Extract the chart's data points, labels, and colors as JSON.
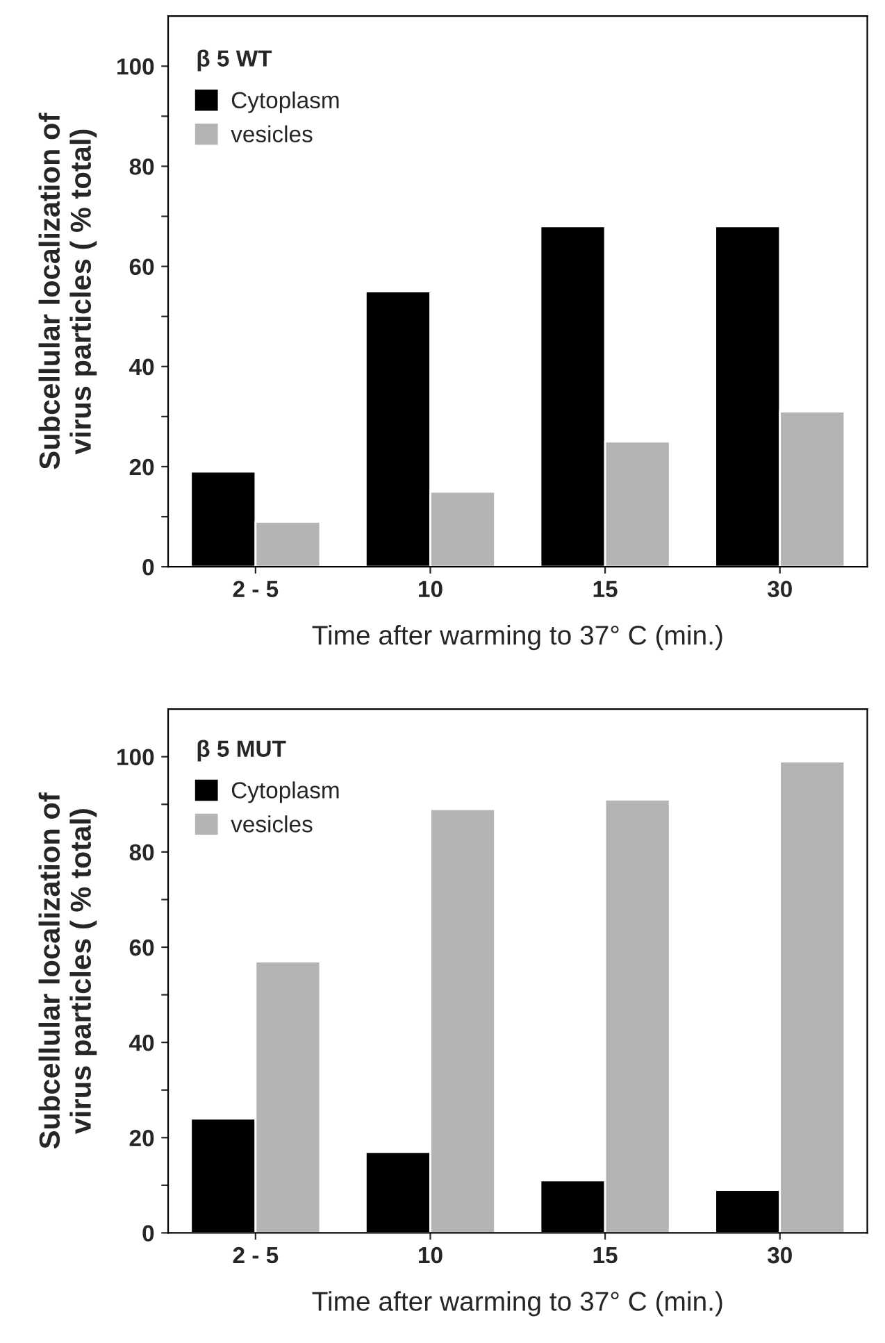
{
  "chart_data": [
    {
      "type": "bar",
      "title": "β 5 WT",
      "xlabel": "Time after warming to 37° C (min.)",
      "ylabel": "Subcellular localization of\nvirus particles ( % total)",
      "categories": [
        "2 - 5",
        "10",
        "15",
        "30"
      ],
      "series": [
        {
          "name": "Cytoplasm",
          "color": "#000000",
          "values": [
            19,
            55,
            68,
            68
          ]
        },
        {
          "name": "vesicles",
          "color": "#b4b4b4",
          "values": [
            9,
            15,
            25,
            31
          ]
        }
      ],
      "ylim": [
        0,
        110
      ],
      "yticks": [
        0,
        {
          "value": 10,
          "label": null
        },
        20,
        {
          "value": 30,
          "label": null
        },
        40,
        {
          "value": 50,
          "label": null
        },
        60,
        {
          "value": 70,
          "label": null
        },
        80,
        {
          "value": 90,
          "label": null
        },
        100
      ],
      "legend": "top left",
      "grid": false
    },
    {
      "type": "bar",
      "title": "β 5 MUT",
      "xlabel": "Time after warming to 37° C (min.)",
      "ylabel": "Subcellular localization of\nvirus particles ( % total)",
      "categories": [
        "2 - 5",
        "10",
        "15",
        "30"
      ],
      "series": [
        {
          "name": "Cytoplasm",
          "color": "#000000",
          "values": [
            24,
            17,
            11,
            9
          ]
        },
        {
          "name": "vesicles",
          "color": "#b4b4b4",
          "values": [
            57,
            89,
            91,
            99
          ]
        }
      ],
      "ylim": [
        0,
        110
      ],
      "yticks": [
        0,
        {
          "value": 10,
          "label": null
        },
        20,
        {
          "value": 30,
          "label": null
        },
        40,
        {
          "value": 50,
          "label": null
        },
        60,
        {
          "value": 70,
          "label": null
        },
        80,
        {
          "value": 90,
          "label": null
        },
        100
      ],
      "legend": "top left",
      "grid": false
    }
  ]
}
